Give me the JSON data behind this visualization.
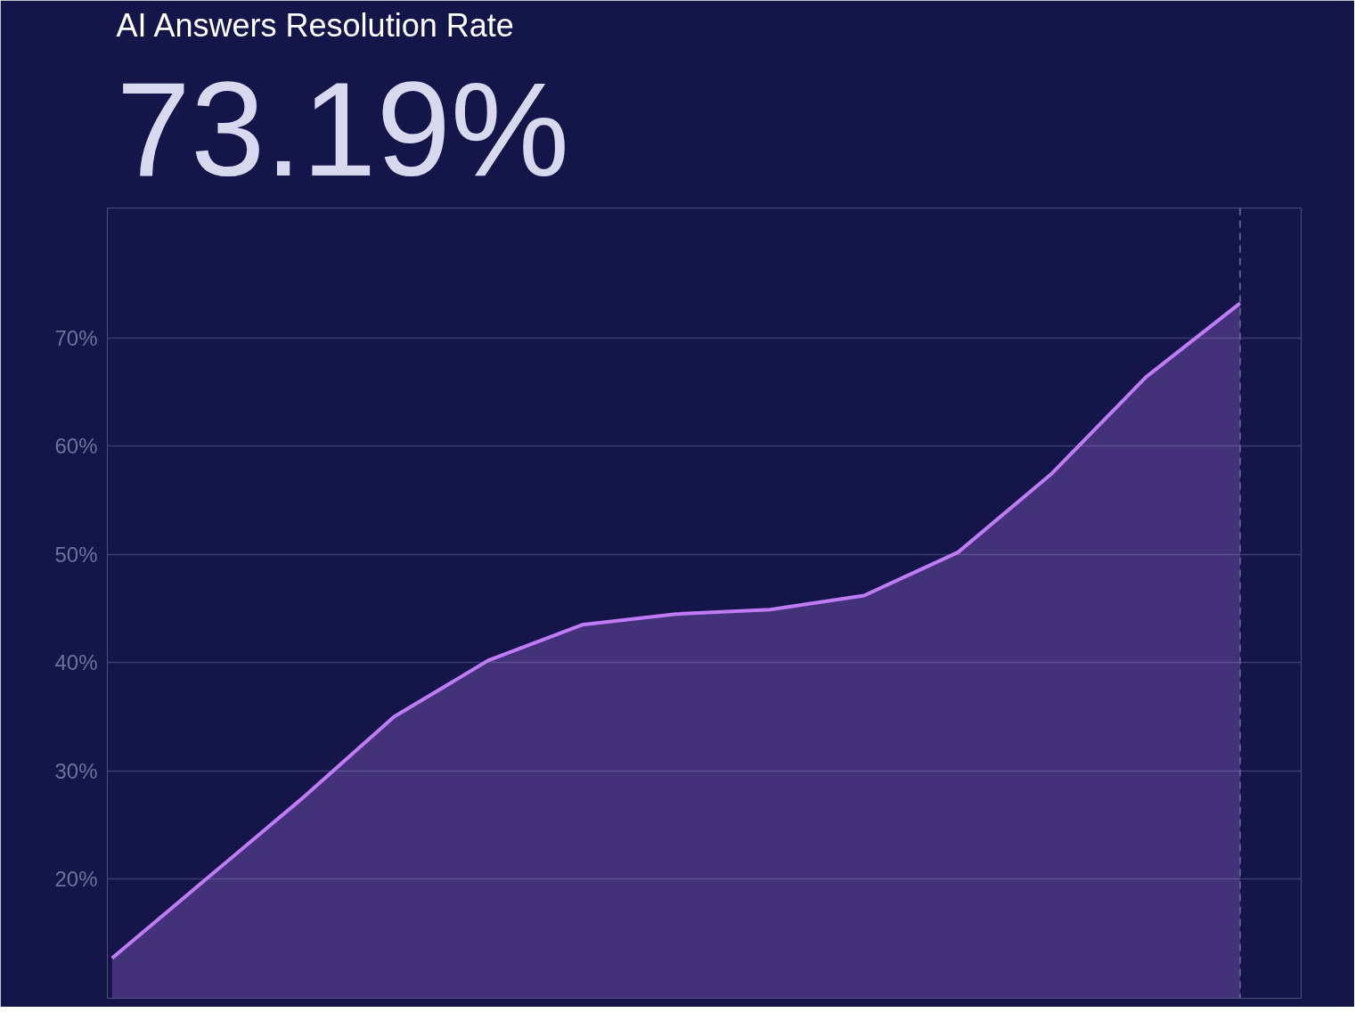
{
  "chart_data": {
    "type": "area",
    "title": "AI Answers Resolution Rate",
    "subtitle": "73.19%",
    "categories": [
      null,
      null,
      null,
      null,
      null,
      null,
      null,
      null,
      null,
      null,
      null,
      null,
      null
    ],
    "series": [
      {
        "color": "#c07cf5",
        "values": [
          12.7,
          20.0,
          27.3,
          35.0,
          40.2,
          43.5,
          44.5,
          44.9,
          46.2,
          50.2,
          57.5,
          66.4,
          73.2
        ]
      }
    ],
    "ylim": [
      9,
      82
    ],
    "yticks": [
      {
        "value": 20,
        "label": "20%"
      },
      {
        "value": 30,
        "label": "30%"
      },
      {
        "value": 40,
        "label": "40%"
      },
      {
        "value": 50,
        "label": "50%"
      },
      {
        "value": 60,
        "label": "60%"
      },
      {
        "value": 70,
        "label": "70%"
      }
    ],
    "grid": "y",
    "tick_labels": "y"
  }
}
